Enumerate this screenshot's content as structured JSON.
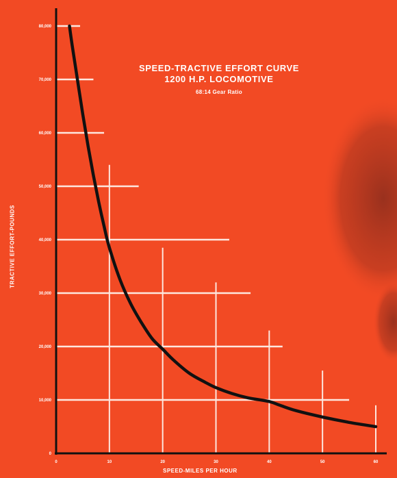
{
  "chart_data": {
    "type": "line",
    "title": "SPEED-TRACTIVE EFFORT CURVE",
    "subtitle": "1200 H.P. LOCOMOTIVE",
    "note": "68:14 Gear Ratio",
    "xlabel": "SPEED-MILES PER HOUR",
    "ylabel": "TRACTIVE EFFORT-POUNDS",
    "xlim": [
      0,
      60
    ],
    "ylim": [
      0,
      80000
    ],
    "x_ticks": [
      0,
      10,
      20,
      30,
      40,
      50,
      60
    ],
    "x_tick_labels": [
      "0",
      "10",
      "20",
      "30",
      "40",
      "50",
      "60"
    ],
    "y_ticks": [
      0,
      10000,
      20000,
      30000,
      40000,
      50000,
      60000,
      70000,
      80000
    ],
    "y_tick_labels": [
      "0",
      "10,000",
      "20,000",
      "30,000",
      "40,000",
      "50,000",
      "60,000",
      "70,000",
      "80,000"
    ],
    "gridlines": {
      "horizontal": [
        {
          "y": 80000,
          "x_end": 4.5
        },
        {
          "y": 70000,
          "x_end": 7
        },
        {
          "y": 60000,
          "x_end": 9
        },
        {
          "y": 50000,
          "x_end": 15.5
        },
        {
          "y": 40000,
          "x_end": 32.5
        },
        {
          "y": 30000,
          "x_end": 36.5
        },
        {
          "y": 20000,
          "x_end": 42.5
        },
        {
          "y": 10000,
          "x_end": 55
        }
      ],
      "vertical": [
        {
          "x": 10,
          "y_end": 54000
        },
        {
          "x": 20,
          "y_end": 38500
        },
        {
          "x": 30,
          "y_end": 32000
        },
        {
          "x": 40,
          "y_end": 23000
        },
        {
          "x": 50,
          "y_end": 15500
        },
        {
          "x": 60,
          "y_end": 9000
        }
      ]
    },
    "series": [
      {
        "color": "#111111",
        "x": [
          2.5,
          3,
          4,
          5,
          6,
          7,
          8,
          9,
          10,
          12,
          14,
          16,
          18,
          20,
          22,
          25,
          28,
          30,
          33,
          36,
          40,
          42,
          45,
          50,
          55,
          60
        ],
        "y": [
          80000,
          76500,
          70000,
          63500,
          57500,
          52000,
          47000,
          42500,
          38500,
          32500,
          28000,
          24500,
          21500,
          19500,
          17500,
          15000,
          13300,
          12300,
          11200,
          10400,
          9700,
          9000,
          8000,
          6800,
          5800,
          5000
        ]
      }
    ]
  }
}
